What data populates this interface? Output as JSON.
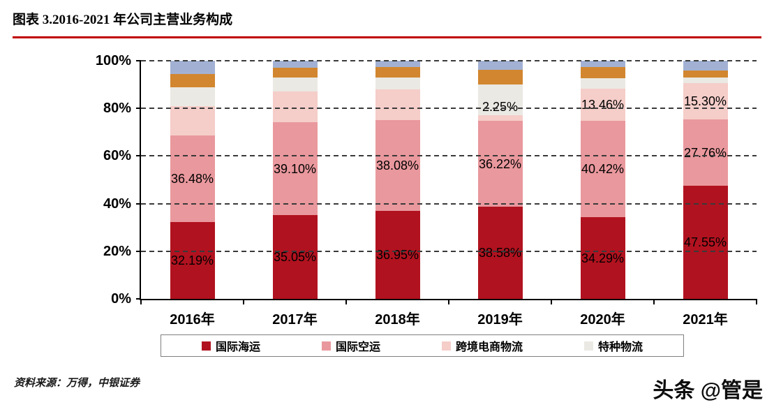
{
  "header": {
    "title": "图表 3.2016-2021 年公司主营业务构成",
    "rule_color": "#c00000"
  },
  "chart_data": {
    "type": "bar",
    "variant": "stacked-100-percent",
    "title": "",
    "categories": [
      "2016年",
      "2017年",
      "2018年",
      "2019年",
      "2020年",
      "2021年"
    ],
    "series": [
      {
        "name": "国际海运",
        "color": "#b1121f",
        "in_legend": true,
        "values": [
          32.19,
          35.05,
          36.95,
          38.58,
          34.29,
          47.55
        ],
        "labels": [
          "32.19%",
          "35.05%",
          "36.95%",
          "38.58%",
          "34.29%",
          "47.55%"
        ]
      },
      {
        "name": "国际空运",
        "color": "#e9989d",
        "in_legend": true,
        "values": [
          36.48,
          39.1,
          38.08,
          36.22,
          40.42,
          27.76
        ],
        "labels": [
          "36.48%",
          "39.10%",
          "38.08%",
          "36.22%",
          "40.42%",
          "27.76%"
        ]
      },
      {
        "name": "跨境电商物流",
        "color": "#f5cdc9",
        "in_legend": true,
        "values": [
          12.33,
          12.85,
          12.97,
          2.25,
          13.46,
          15.3
        ],
        "labels": [
          "",
          "",
          "",
          "2.25%",
          "13.46%",
          "15.30%"
        ]
      },
      {
        "name": "特种物流",
        "color": "#ebe9e3",
        "in_legend": true,
        "values": [
          8.0,
          6.0,
          5.0,
          13.0,
          4.5,
          2.5
        ],
        "labels": [
          "",
          "",
          "",
          "",
          "",
          ""
        ]
      },
      {
        "name": "",
        "color": "#d2862f",
        "in_legend": false,
        "values": [
          5.5,
          4.0,
          4.5,
          6.0,
          4.83,
          2.89
        ],
        "labels": [
          "",
          "",
          "",
          "",
          "",
          ""
        ]
      },
      {
        "name": "",
        "color": "#a2b1d3",
        "in_legend": false,
        "values": [
          5.5,
          3.0,
          2.5,
          3.95,
          2.5,
          4.0
        ],
        "labels": [
          "",
          "",
          "",
          "",
          "",
          ""
        ]
      }
    ],
    "ylim": [
      0,
      100
    ],
    "yticks": [
      {
        "value": 0,
        "label": "0%"
      },
      {
        "value": 20,
        "label": "20%"
      },
      {
        "value": 40,
        "label": "40%"
      },
      {
        "value": 60,
        "label": "60%"
      },
      {
        "value": 80,
        "label": "80%"
      },
      {
        "value": 100,
        "label": "100%"
      }
    ],
    "grid": "horizontal-dashed",
    "legend_position": "bottom"
  },
  "footer": {
    "source": "资料来源：万得，中银证券"
  },
  "watermark": {
    "text": "头条 @管是"
  }
}
